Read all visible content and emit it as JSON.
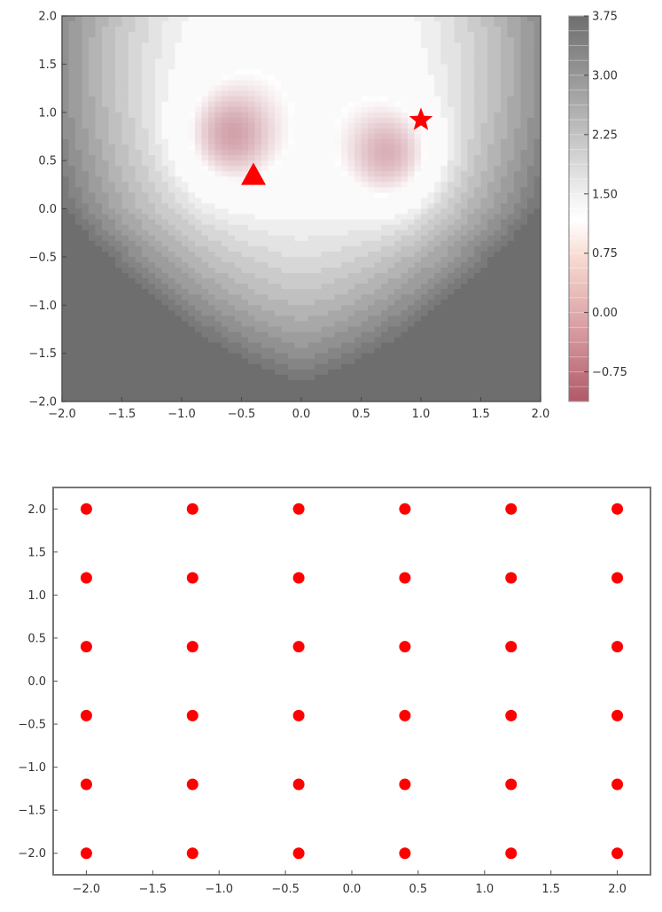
{
  "chart_data": [
    {
      "type": "contour",
      "xlim": [
        -2.0,
        2.0
      ],
      "ylim": [
        -2.0,
        2.0
      ],
      "xticks": [
        "−2.0",
        "−1.5",
        "−1.0",
        "−0.5",
        "0.0",
        "0.5",
        "1.0",
        "1.5",
        "2.0"
      ],
      "yticks": [
        "−2.0",
        "−1.5",
        "−1.0",
        "−0.5",
        "0.0",
        "0.5",
        "1.0",
        "1.5",
        "2.0"
      ],
      "colorbar": {
        "range": [
          -1.125,
          3.75
        ],
        "ticks": [
          "3.75",
          "3.00",
          "2.25",
          "1.50",
          "0.75",
          "0.00",
          "−0.75"
        ],
        "tick_values": [
          3.75,
          3.0,
          2.25,
          1.5,
          0.75,
          0.0,
          -0.75
        ],
        "colors": {
          "high": "#6e6e6e",
          "mid": "#ffffff",
          "low": "#b05a66"
        }
      },
      "markers": [
        {
          "shape": "triangle",
          "x": -0.4,
          "y": 0.35,
          "color": "#ff0000"
        },
        {
          "shape": "star",
          "x": 1.0,
          "y": 0.92,
          "color": "#ff0000"
        }
      ]
    },
    {
      "type": "scatter",
      "xlim": [
        -2.25,
        2.25
      ],
      "ylim": [
        -2.25,
        2.25
      ],
      "xticks": [
        "−2.0",
        "−1.5",
        "−1.0",
        "−0.5",
        "0.0",
        "0.5",
        "1.0",
        "1.5",
        "2.0"
      ],
      "yticks": [
        "−2.0",
        "−1.5",
        "−1.0",
        "−0.5",
        "0.0",
        "0.5",
        "1.0",
        "1.5",
        "2.0"
      ],
      "grid_x": [
        -2.0,
        -1.2,
        -0.4,
        0.4,
        1.2,
        2.0
      ],
      "grid_y": [
        -2.0,
        -1.2,
        -0.4,
        0.4,
        1.2,
        2.0
      ],
      "point_color": "#ff0000"
    }
  ]
}
